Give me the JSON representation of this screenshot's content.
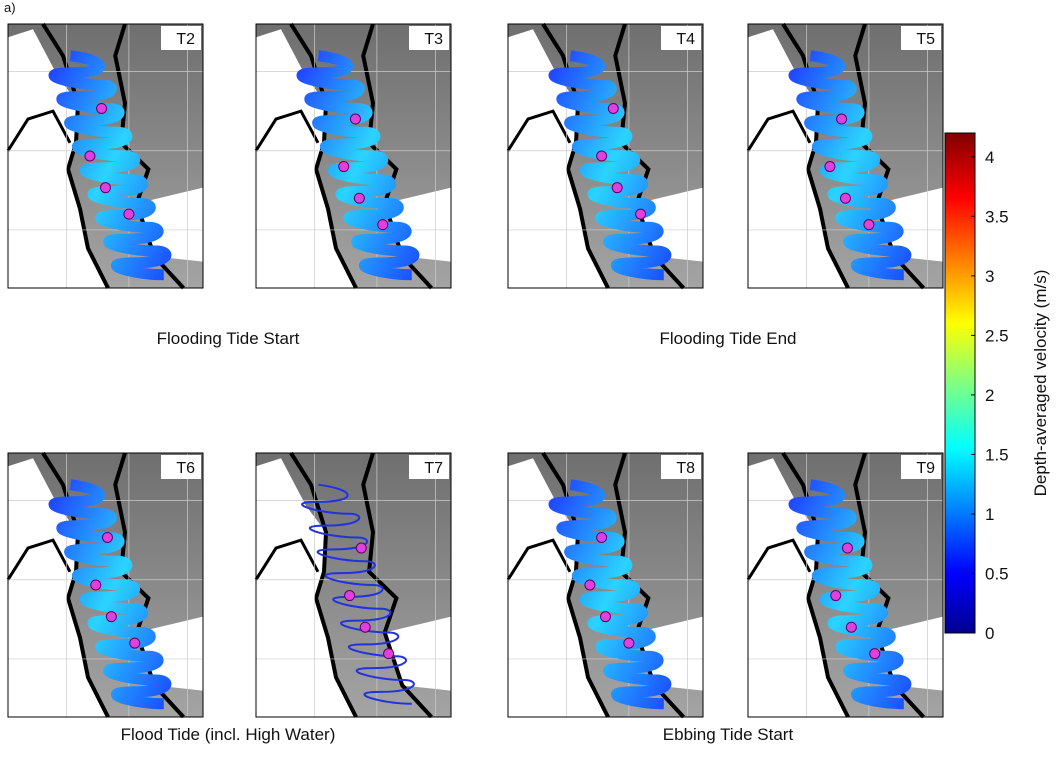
{
  "panel_tag": "a)",
  "panels": [
    {
      "label": "T2"
    },
    {
      "label": "T3"
    },
    {
      "label": "T4"
    },
    {
      "label": "T5"
    },
    {
      "label": "T6"
    },
    {
      "label": "T7"
    },
    {
      "label": "T8"
    },
    {
      "label": "T9"
    }
  ],
  "captions": [
    "Flooding Tide Start",
    "Flooding Tide End",
    "Flood Tide (incl. High Water)",
    "Ebbing Tide Start"
  ],
  "colorbar": {
    "label": "Depth-averaged velocity (m/s)",
    "lim": [
      0,
      4.2
    ],
    "ticks": [
      0,
      0.5,
      1,
      1.5,
      2,
      2.5,
      3,
      3.5,
      4
    ]
  }
}
